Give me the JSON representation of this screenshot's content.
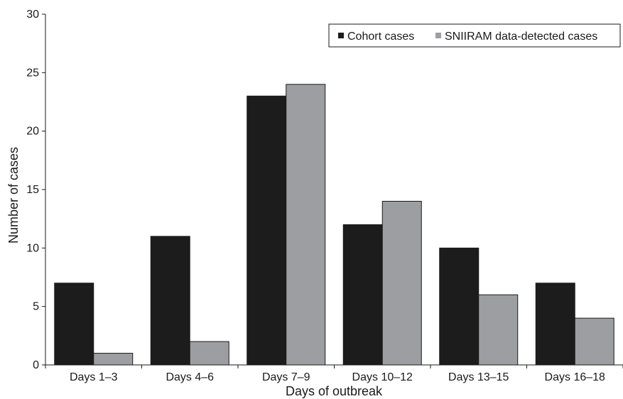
{
  "chart_data": {
    "type": "bar",
    "title": "",
    "xlabel": "Days of outbreak",
    "ylabel": "Number of cases",
    "categories": [
      "Days 1–3",
      "Days 4–6",
      "Days 7–9",
      "Days 10–12",
      "Days 13–15",
      "Days 16–18"
    ],
    "series": [
      {
        "name": "Cohort cases",
        "color": "#1c1c1c",
        "values": [
          7,
          11,
          23,
          12,
          10,
          7
        ]
      },
      {
        "name": "SNIIRAM data-detected cases",
        "color": "#9d9ea2",
        "values": [
          1,
          2,
          24,
          14,
          6,
          4
        ]
      }
    ],
    "ylim": [
      0,
      30
    ],
    "yticks": [
      "0",
      "5",
      "10",
      "15",
      "20",
      "25",
      "30"
    ],
    "legend_position": "top-right",
    "grid": false
  }
}
